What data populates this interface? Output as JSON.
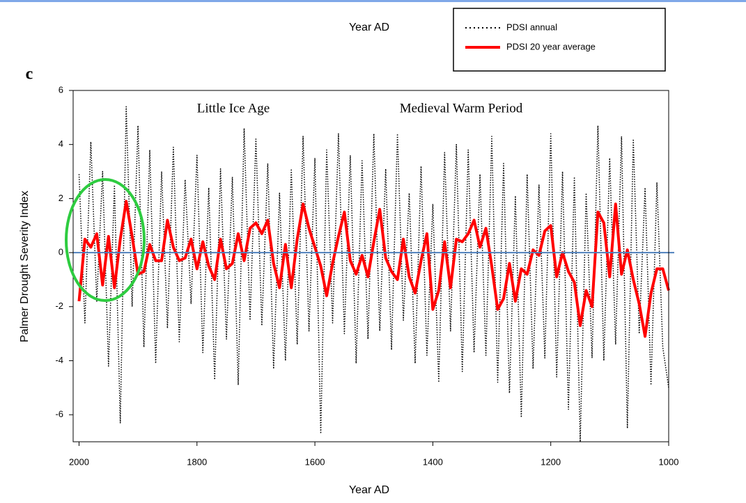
{
  "chart_data": {
    "type": "line",
    "top_label": "Year AD",
    "panel_label": "c",
    "x_label": "Year AD",
    "y_label": "Palmer Drought Severity Index",
    "annotations": [
      "Little Ice Age",
      "Medieval Warm Period"
    ],
    "xlim": [
      2010,
      1000
    ],
    "xticks": [
      2000,
      1800,
      1600,
      1400,
      1200,
      1000
    ],
    "ylim": [
      -7,
      6
    ],
    "yticks": [
      6,
      4,
      2,
      0,
      -2,
      -4,
      -6
    ],
    "zero_line": {
      "value": 0,
      "color": "#4f81bd"
    },
    "legend": "top-right",
    "x": [
      2000,
      1990,
      1980,
      1970,
      1960,
      1950,
      1940,
      1930,
      1920,
      1910,
      1900,
      1890,
      1880,
      1870,
      1860,
      1850,
      1840,
      1830,
      1820,
      1810,
      1800,
      1790,
      1780,
      1770,
      1760,
      1750,
      1740,
      1730,
      1720,
      1710,
      1700,
      1690,
      1680,
      1670,
      1660,
      1650,
      1640,
      1630,
      1620,
      1610,
      1600,
      1590,
      1580,
      1570,
      1560,
      1550,
      1540,
      1530,
      1520,
      1510,
      1500,
      1490,
      1480,
      1470,
      1460,
      1450,
      1440,
      1430,
      1420,
      1410,
      1400,
      1390,
      1380,
      1370,
      1360,
      1350,
      1340,
      1330,
      1320,
      1310,
      1300,
      1290,
      1280,
      1270,
      1260,
      1250,
      1240,
      1230,
      1220,
      1210,
      1200,
      1190,
      1180,
      1170,
      1160,
      1150,
      1140,
      1130,
      1120,
      1110,
      1100,
      1090,
      1080,
      1070,
      1060,
      1050,
      1040,
      1030,
      1020,
      1010,
      1000
    ],
    "series": [
      {
        "name": "PDSI annual",
        "color": "#000000",
        "style": "dotted",
        "values": [
          2.9,
          -2.6,
          4.1,
          -1.8,
          3.0,
          -4.2,
          2.5,
          -6.3,
          5.4,
          -2.0,
          4.7,
          -3.5,
          3.8,
          -4.1,
          3.0,
          -2.8,
          3.9,
          -3.3,
          2.7,
          -1.9,
          3.6,
          -3.7,
          2.4,
          -4.7,
          3.1,
          -3.2,
          2.8,
          -4.9,
          4.6,
          -2.5,
          4.2,
          -2.7,
          3.3,
          -4.3,
          2.2,
          -4.0,
          3.1,
          -3.4,
          4.3,
          -2.9,
          3.5,
          -6.7,
          3.8,
          -2.6,
          4.4,
          -3.0,
          3.6,
          -4.1,
          3.4,
          -3.2,
          4.4,
          -2.9,
          3.1,
          -3.6,
          4.4,
          -2.5,
          2.2,
          -4.1,
          3.2,
          -3.8,
          1.8,
          -4.8,
          3.7,
          -2.9,
          4.0,
          -4.4,
          3.8,
          -3.7,
          2.9,
          -3.8,
          4.3,
          -4.8,
          3.3,
          -5.2,
          2.1,
          -6.1,
          2.9,
          -4.3,
          2.5,
          -3.9,
          4.4,
          -4.6,
          3.0,
          -5.8,
          2.8,
          -7.0,
          2.2,
          -3.9,
          4.7,
          -4.0,
          3.5,
          -3.4,
          4.3,
          -6.5,
          4.2,
          -3.0,
          2.4,
          -4.9,
          2.6,
          -3.5,
          -5.0
        ]
      },
      {
        "name": "PDSI 20 year average",
        "color": "#ff0000",
        "style": "solid",
        "values": [
          -1.8,
          0.5,
          0.2,
          0.7,
          -1.2,
          0.6,
          -1.3,
          0.5,
          1.9,
          0.6,
          -0.8,
          -0.7,
          0.3,
          -0.3,
          -0.3,
          1.2,
          0.2,
          -0.3,
          -0.2,
          0.5,
          -0.6,
          0.4,
          -0.5,
          -1.0,
          0.5,
          -0.6,
          -0.4,
          0.7,
          -0.3,
          0.9,
          1.1,
          0.7,
          1.2,
          -0.4,
          -1.3,
          0.3,
          -1.3,
          0.5,
          1.8,
          0.9,
          0.2,
          -0.5,
          -1.6,
          -0.4,
          0.6,
          1.5,
          -0.3,
          -0.8,
          -0.1,
          -0.9,
          0.4,
          1.6,
          -0.2,
          -0.7,
          -1.0,
          0.5,
          -0.9,
          -1.5,
          -0.3,
          0.7,
          -2.1,
          -1.4,
          0.4,
          -1.3,
          0.5,
          0.4,
          0.7,
          1.2,
          0.2,
          0.9,
          -0.5,
          -2.1,
          -1.7,
          -0.4,
          -1.8,
          -0.6,
          -0.8,
          0.1,
          -0.1,
          0.8,
          1.0,
          -0.9,
          0.0,
          -0.7,
          -1.1,
          -2.7,
          -1.4,
          -2.0,
          1.5,
          1.1,
          -0.9,
          1.8,
          -0.8,
          0.1,
          -1.0,
          -1.9,
          -3.1,
          -1.5,
          -0.6,
          -0.6,
          -1.4
        ]
      }
    ]
  }
}
